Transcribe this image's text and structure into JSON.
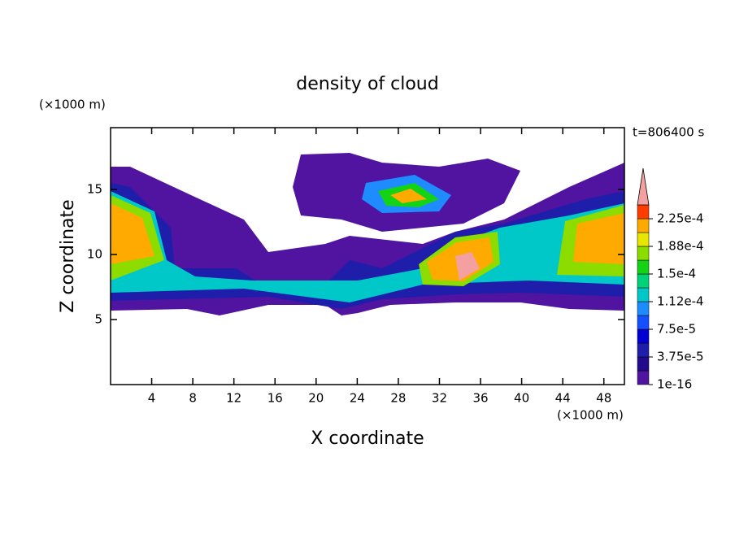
{
  "chart_data": {
    "type": "contour",
    "title": "density of cloud",
    "xlabel": "X coordinate",
    "ylabel": "Z coordinate",
    "x_unit": "(×1000 m)",
    "y_unit": "(×1000 m)",
    "annotation": "t=806400 s",
    "xlim": [
      0,
      50
    ],
    "xticks": [
      4,
      8,
      12,
      16,
      20,
      24,
      28,
      32,
      36,
      40,
      44,
      48
    ],
    "ylim": [
      0,
      19.75
    ],
    "yticks": [
      5,
      10,
      15
    ],
    "colorbar": {
      "levels": [
        {
          "value": 1e-16,
          "label": "1e-16"
        },
        1.875e-05,
        {
          "value": 3.75e-05,
          "label": "3.75e-5"
        },
        5.625e-05,
        {
          "value": 7.5e-05,
          "label": "7.5e-5"
        },
        9.375e-05,
        {
          "value": 0.000112,
          "label": "1.12e-4"
        },
        0.00013125,
        {
          "value": 0.00015,
          "label": "1.5e-4"
        },
        0.00016875,
        {
          "value": 0.000188,
          "label": "1.88e-4"
        },
        0.00020625,
        {
          "value": 0.000225,
          "label": "2.25e-4"
        },
        0.00024375
      ],
      "colors": [
        "#5014a0",
        "#230a8c",
        "#1e1eaa",
        "#0000d2",
        "#1450ff",
        "#1e8cff",
        "#00c8c8",
        "#00d278",
        "#14d214",
        "#8cdc00",
        "#e6e600",
        "#ffaa00",
        "#ff3c00"
      ],
      "extend_color": "#f5a0a0"
    }
  }
}
